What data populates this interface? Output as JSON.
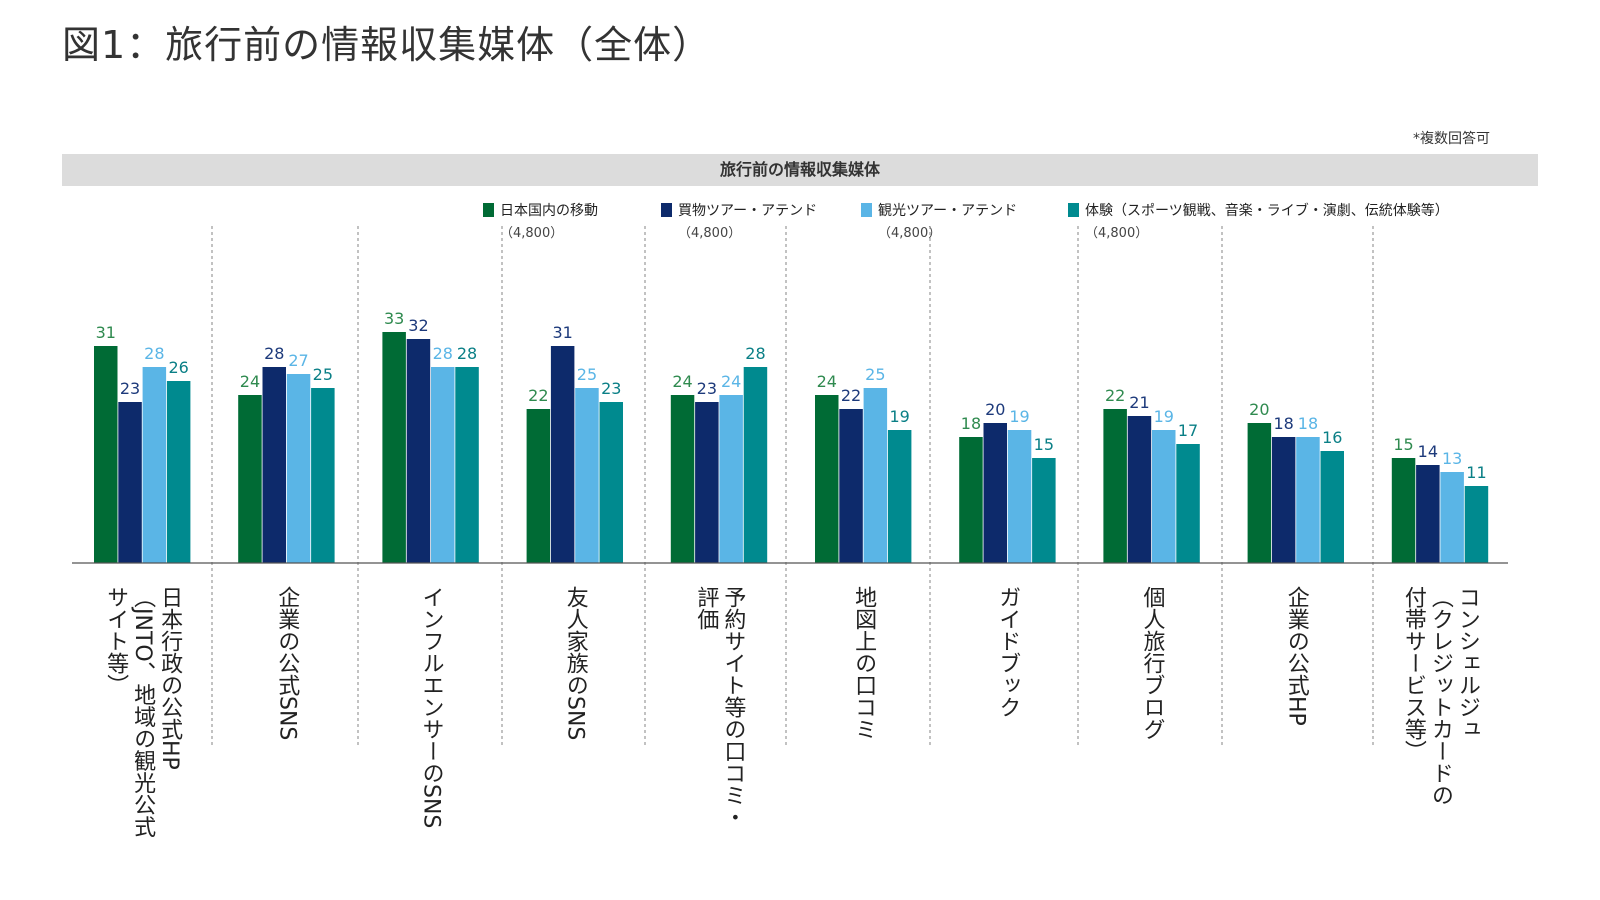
{
  "title": "図1：旅行前の情報収集媒体（全体）",
  "note": "*複数回答可",
  "banner": "旅行前の情報収集媒体",
  "colors": {
    "domestic": "#006b35",
    "shopping": "#0d2a6b",
    "sightseeing": "#5ab5e6",
    "experience": "#008a8f"
  },
  "chart_data": {
    "type": "bar",
    "title": "旅行前の情報収集媒体",
    "xlabel": "",
    "ylabel": "",
    "ylim": [
      0,
      35
    ],
    "grid": false,
    "legend_position": "top",
    "categories": [
      "日本行政の公式HP（JNTO、地域の観光公式サイト等）",
      "企業の公式SNS",
      "インフルエンサーのSNS",
      "友人家族のSNS",
      "予約サイト等の口コミ・評価",
      "地図上の口コミ",
      "ガイドブック",
      "個人旅行ブログ",
      "企業の公式HP",
      "コンシェルジュ（クレジットカードの付帯サービス等）"
    ],
    "category_lines": [
      [
        "日本行政の公式HP",
        "（JNTO、地域の観光公式",
        "サイト等）"
      ],
      [
        "企業の公式SNS"
      ],
      [
        "インフルエンサーのSNS"
      ],
      [
        "友人家族のSNS"
      ],
      [
        "予約サイト等の口コミ・",
        "評価"
      ],
      [
        "地図上の口コミ"
      ],
      [
        "ガイドブック"
      ],
      [
        "個人旅行ブログ"
      ],
      [
        "企業の公式HP"
      ],
      [
        "コンシェルジュ",
        "（クレジットカードの",
        "付帯サービス等）"
      ]
    ],
    "series": [
      {
        "name": "日本国内の移動",
        "n": "（4,800）",
        "color": "#006b35",
        "label_color": "#2f8a4f",
        "values": [
          31,
          24,
          33,
          22,
          24,
          24,
          18,
          22,
          20,
          15
        ]
      },
      {
        "name": "買物ツアー・アテンド",
        "n": "（4,800）",
        "color": "#0d2a6b",
        "label_color": "#1d3a7b",
        "values": [
          23,
          28,
          32,
          31,
          23,
          22,
          20,
          21,
          18,
          14
        ]
      },
      {
        "name": "観光ツアー・アテンド",
        "n": "（4,800）",
        "color": "#5ab5e6",
        "label_color": "#5ab5e6",
        "values": [
          28,
          27,
          28,
          25,
          24,
          25,
          19,
          19,
          18,
          13
        ]
      },
      {
        "name": "体験（スポーツ観戦、音楽・ライブ・演劇、伝統体験等）",
        "n": "（4,800）",
        "color": "#008a8f",
        "label_color": "#0a7f86",
        "values": [
          26,
          25,
          28,
          23,
          28,
          19,
          15,
          17,
          16,
          11
        ]
      }
    ]
  }
}
